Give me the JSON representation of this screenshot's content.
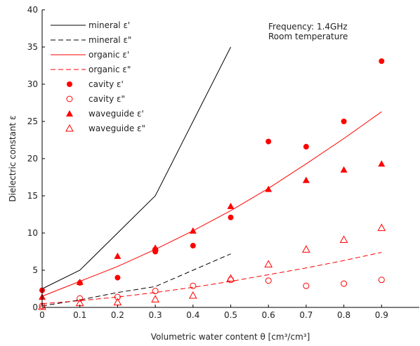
{
  "chart_data": {
    "type": "scatter",
    "xlabel": "Volumetric water content θ [cm³/cm³]",
    "ylabel": "Dielectric constant ε",
    "xlim": [
      0,
      1.0
    ],
    "ylim": [
      0,
      40
    ],
    "xticks": [
      "0",
      "0.1",
      "0.2",
      "0.3",
      "0.4",
      "0.5",
      "0.6",
      "0.7",
      "0.8",
      "0.9"
    ],
    "yticks": [
      "0",
      "5",
      "10",
      "15",
      "20",
      "25",
      "30",
      "35",
      "40"
    ],
    "grid": false,
    "legend_position": "top-left",
    "annotations": [
      "Frequency: 1.4GHz",
      "Room temperature"
    ],
    "colors": {
      "black": "#000000",
      "red": "#ff0000"
    },
    "series": [
      {
        "name": "mineral ε'",
        "kind": "line",
        "style": "solid",
        "color": "#000000",
        "x": [
          0,
          0.1,
          0.2,
          0.3,
          0.4,
          0.5
        ],
        "y": [
          2.5,
          5.0,
          10.0,
          15.0,
          25.0,
          35.0
        ]
      },
      {
        "name": "mineral ε\"",
        "kind": "line",
        "style": "dashed",
        "color": "#000000",
        "x": [
          0,
          0.1,
          0.2,
          0.3,
          0.4,
          0.5
        ],
        "y": [
          0.2,
          1.0,
          2.0,
          2.8,
          5.0,
          7.2
        ]
      },
      {
        "name": "organic ε'",
        "kind": "line",
        "style": "solid",
        "color": "#ff0000",
        "x": [
          0,
          0.1,
          0.2,
          0.3,
          0.4,
          0.5,
          0.6,
          0.7,
          0.8,
          0.9
        ],
        "y": [
          1.5,
          3.5,
          5.5,
          7.8,
          10.3,
          13.0,
          16.0,
          19.3,
          22.7,
          26.3
        ]
      },
      {
        "name": "organic ε\"",
        "kind": "line",
        "style": "dashed",
        "color": "#ff0000",
        "x": [
          0,
          0.1,
          0.2,
          0.3,
          0.4,
          0.5,
          0.6,
          0.7,
          0.8,
          0.9
        ],
        "y": [
          0.5,
          0.9,
          1.4,
          2.0,
          2.7,
          3.5,
          4.4,
          5.3,
          6.3,
          7.4
        ]
      },
      {
        "name": "cavity ε'",
        "kind": "marker",
        "marker": "filled-circle",
        "color": "#ff0000",
        "x": [
          0,
          0.1,
          0.2,
          0.3,
          0.3,
          0.4,
          0.5,
          0.6,
          0.7,
          0.8,
          0.9
        ],
        "y": [
          2.3,
          3.3,
          4.0,
          7.5,
          7.8,
          8.3,
          12.1,
          22.3,
          21.6,
          25.0,
          33.1
        ]
      },
      {
        "name": "cavity ε\"",
        "kind": "marker",
        "marker": "open-circle",
        "color": "#ff0000",
        "x": [
          0,
          0.1,
          0.2,
          0.3,
          0.4,
          0.5,
          0.6,
          0.7,
          0.8,
          0.9
        ],
        "y": [
          0.2,
          1.2,
          1.4,
          2.2,
          2.9,
          3.7,
          3.6,
          2.9,
          3.2,
          3.7
        ]
      },
      {
        "name": "waveguide ε'",
        "kind": "marker",
        "marker": "filled-triangle",
        "color": "#ff0000",
        "x": [
          0,
          0.1,
          0.2,
          0.3,
          0.4,
          0.5,
          0.6,
          0.7,
          0.8,
          0.9
        ],
        "y": [
          1.4,
          3.4,
          6.9,
          8.0,
          10.3,
          13.6,
          15.9,
          17.1,
          18.5,
          19.3
        ]
      },
      {
        "name": "waveguide ε\"",
        "kind": "marker",
        "marker": "open-triangle",
        "color": "#ff0000",
        "x": [
          0,
          0.1,
          0.2,
          0.3,
          0.4,
          0.5,
          0.6,
          0.7,
          0.8,
          0.9
        ],
        "y": [
          0.1,
          0.6,
          0.7,
          1.1,
          1.6,
          3.9,
          5.8,
          7.8,
          9.1,
          10.7
        ]
      }
    ]
  }
}
